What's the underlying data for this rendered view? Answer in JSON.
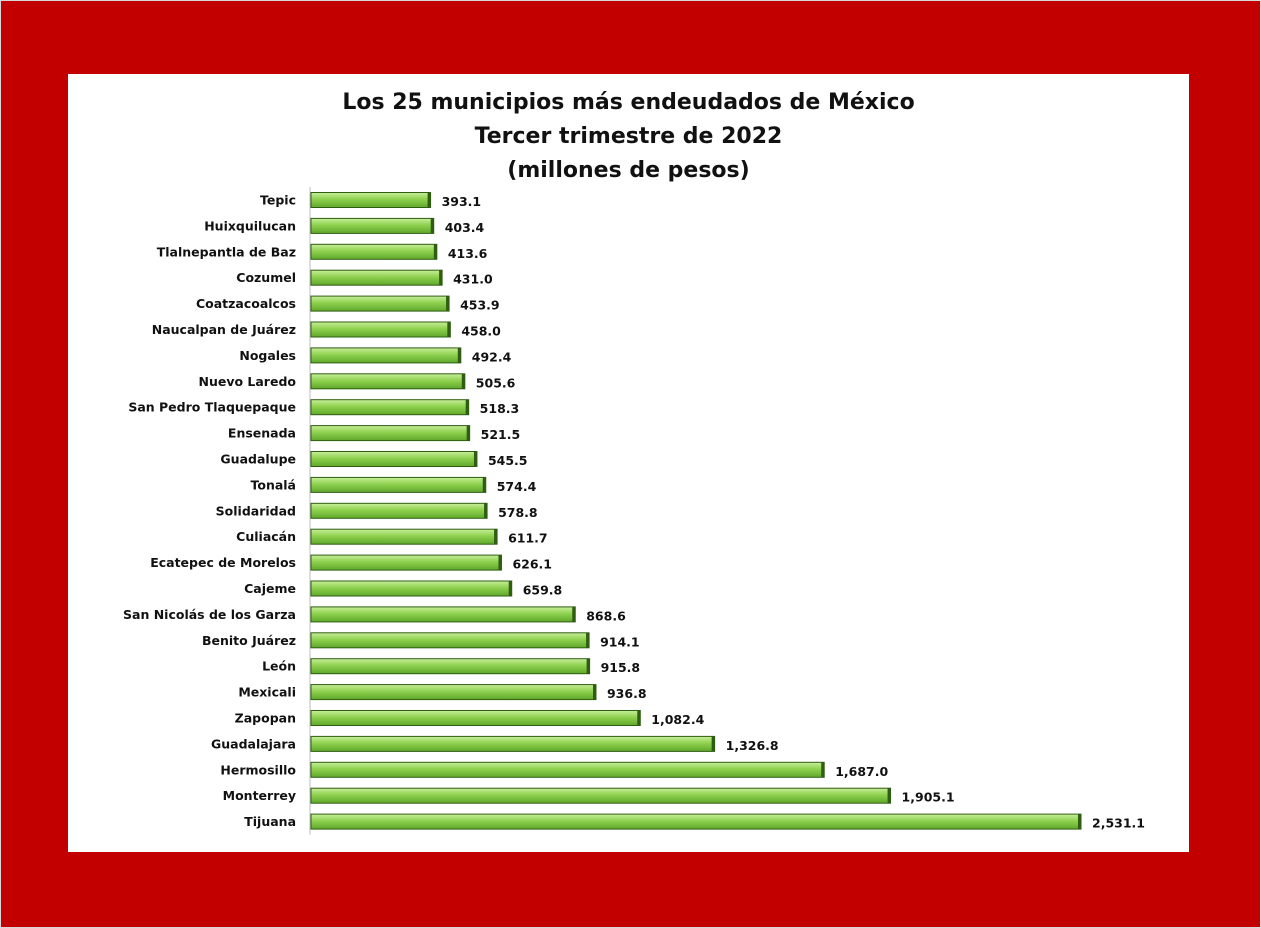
{
  "chart_data": {
    "type": "bar",
    "orientation": "horizontal",
    "title": [
      "Los 25 municipios más endeudados de México",
      "Tercer trimestre de 2022",
      "(millones de pesos)"
    ],
    "categories": [
      "Tepic",
      "Huixquilucan",
      "Tlalnepantla de Baz",
      "Cozumel",
      "Coatzacoalcos",
      "Naucalpan de Juárez",
      "Nogales",
      "Nuevo Laredo",
      "San Pedro Tlaquepaque",
      "Ensenada",
      "Guadalupe",
      "Tonalá",
      "Solidaridad",
      "Culiacán",
      "Ecatepec de Morelos",
      "Cajeme",
      "San Nicolás de los Garza",
      "Benito Juárez",
      "León",
      "Mexicali",
      "Zapopan",
      "Guadalajara",
      "Hermosillo",
      "Monterrey",
      "Tijuana"
    ],
    "values": [
      393.1,
      403.4,
      413.6,
      431.0,
      453.9,
      458.0,
      492.4,
      505.6,
      518.3,
      521.5,
      545.5,
      574.4,
      578.8,
      611.7,
      626.1,
      659.8,
      868.6,
      914.1,
      915.8,
      936.8,
      1082.4,
      1326.8,
      1687.0,
      1905.1,
      2531.1
    ],
    "value_labels": [
      "393.1",
      "403.4",
      "413.6",
      "431.0",
      "453.9",
      "458.0",
      "492.4",
      "505.6",
      "518.3",
      "521.5",
      "545.5",
      "574.4",
      "578.8",
      "611.7",
      "626.1",
      "659.8",
      "868.6",
      "914.1",
      "915.8",
      "936.8",
      "1,082.4",
      "1,326.8",
      "1,687.0",
      "1,905.1",
      "2,531.1"
    ],
    "xlim": [
      0,
      2531.1
    ],
    "grid": false,
    "legend": "none",
    "colors": {
      "bar": "#8fd14f",
      "bar_edge": "#2f5e12",
      "frame": "#c30000"
    }
  }
}
